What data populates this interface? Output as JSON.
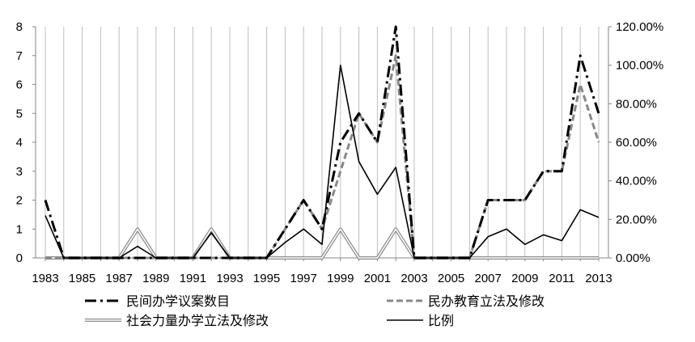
{
  "chart_data": {
    "type": "line",
    "x": [
      1983,
      1984,
      1985,
      1986,
      1987,
      1988,
      1989,
      1990,
      1991,
      1992,
      1993,
      1994,
      1995,
      1996,
      1997,
      1998,
      1999,
      2000,
      2001,
      2002,
      2003,
      2004,
      2005,
      2006,
      2007,
      2008,
      2009,
      2010,
      2011,
      2012,
      2013
    ],
    "x_tick_labels": [
      "1983",
      "1985",
      "1987",
      "1989",
      "1991",
      "1993",
      "1995",
      "1997",
      "1999",
      "2001",
      "2003",
      "2005",
      "2007",
      "2009",
      "2011",
      "2013"
    ],
    "y_left_ticks": [
      "0",
      "1",
      "2",
      "3",
      "4",
      "5",
      "6",
      "7",
      "8"
    ],
    "y_right_ticks": [
      "0.00%",
      "20.00%",
      "40.00%",
      "60.00%",
      "80.00%",
      "100.00%",
      "120.00%"
    ],
    "ylim_left": [
      0,
      8
    ],
    "ylim_right": [
      0,
      1.2
    ],
    "grid": "vertical",
    "legend_position": "bottom",
    "series": [
      {
        "name": "民间办学议案数目",
        "axis": "left",
        "color": "#000000",
        "style": "dash-dot",
        "values": [
          2,
          0,
          0,
          0,
          0,
          0,
          0,
          0,
          0,
          0,
          0,
          0,
          0,
          1,
          2,
          1,
          4,
          5,
          4,
          8,
          0,
          0,
          0,
          0,
          2,
          2,
          2,
          3,
          3,
          7,
          5
        ]
      },
      {
        "name": "民办教育立法及修改",
        "axis": "left",
        "color": "#888888",
        "style": "dashed",
        "values": [
          0,
          0,
          0,
          0,
          0,
          0,
          0,
          0,
          0,
          0,
          0,
          0,
          0,
          1,
          2,
          1,
          3,
          5,
          4,
          7,
          0,
          0,
          0,
          0,
          2,
          2,
          2,
          3,
          3,
          6,
          4
        ]
      },
      {
        "name": "社会力量办学立法及修改",
        "axis": "left",
        "color": "#888888",
        "style": "double",
        "values": [
          0,
          0,
          0,
          0,
          0,
          1,
          0,
          0,
          0,
          1,
          0,
          0,
          0,
          0,
          0,
          0,
          1,
          0,
          0,
          1,
          0,
          0,
          0,
          0,
          0,
          0,
          0,
          0,
          0,
          0,
          0
        ]
      },
      {
        "name": "比例",
        "axis": "right",
        "color": "#000000",
        "style": "solid",
        "values": [
          0.22,
          0,
          0,
          0,
          0,
          0.06,
          0,
          0,
          0,
          0.13,
          0,
          0,
          0,
          0.08,
          0.15,
          0.07,
          1.0,
          0.5,
          0.33,
          0.47,
          0,
          0,
          0,
          0,
          0.11,
          0.15,
          0.07,
          0.12,
          0.09,
          0.25,
          0.21
        ]
      }
    ]
  }
}
